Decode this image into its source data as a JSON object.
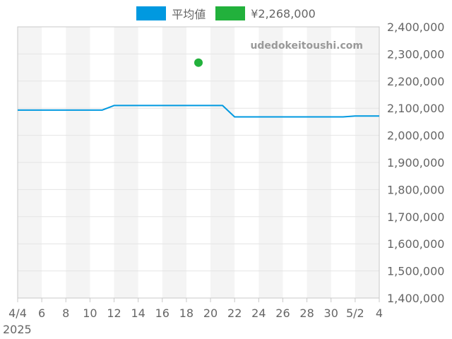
{
  "chart_data": {
    "type": "line",
    "x": [
      "2025-04-04",
      "2025-04-05",
      "2025-04-06",
      "2025-04-07",
      "2025-04-08",
      "2025-04-09",
      "2025-04-10",
      "2025-04-11",
      "2025-04-12",
      "2025-04-13",
      "2025-04-14",
      "2025-04-15",
      "2025-04-16",
      "2025-04-17",
      "2025-04-18",
      "2025-04-19",
      "2025-04-20",
      "2025-04-21",
      "2025-04-22",
      "2025-04-23",
      "2025-04-24",
      "2025-04-25",
      "2025-04-26",
      "2025-04-27",
      "2025-04-28",
      "2025-04-29",
      "2025-04-30",
      "2025-05-01",
      "2025-05-02",
      "2025-05-03",
      "2025-05-04"
    ],
    "x_ticks": [
      "4/4",
      "6",
      "8",
      "10",
      "12",
      "14",
      "16",
      "18",
      "20",
      "22",
      "24",
      "26",
      "28",
      "30",
      "5/2",
      "4"
    ],
    "x_year_label": "2025",
    "y_ticks": [
      "2,400,000",
      "2,300,000",
      "2,200,000",
      "2,100,000",
      "2,000,000",
      "1,900,000",
      "1,800,000",
      "1,700,000",
      "1,600,000",
      "1,500,000",
      "1,400,000"
    ],
    "ylim": [
      1400000,
      2400000
    ],
    "series": [
      {
        "name": "平均値",
        "color": "#0099e0",
        "values": [
          2093000,
          2093000,
          2093000,
          2093000,
          2093000,
          2093000,
          2093000,
          2093000,
          2110000,
          2110000,
          2110000,
          2110000,
          2110000,
          2110000,
          2110000,
          2110000,
          2110000,
          2110000,
          2068000,
          2068000,
          2068000,
          2068000,
          2068000,
          2068000,
          2068000,
          2068000,
          2068000,
          2068000,
          2071000,
          2071000,
          2071000
        ]
      },
      {
        "name": "¥2,268,000",
        "color": "#22b13c",
        "points": [
          {
            "x": "2025-04-19",
            "y": 2268000
          }
        ]
      }
    ],
    "grid": true,
    "legend_position": "top",
    "colors": {
      "band": "#f4f4f4",
      "grid": "#e4e4e4",
      "axis": "#c8c8c8"
    },
    "watermark": "udedokeitoushi.com"
  }
}
